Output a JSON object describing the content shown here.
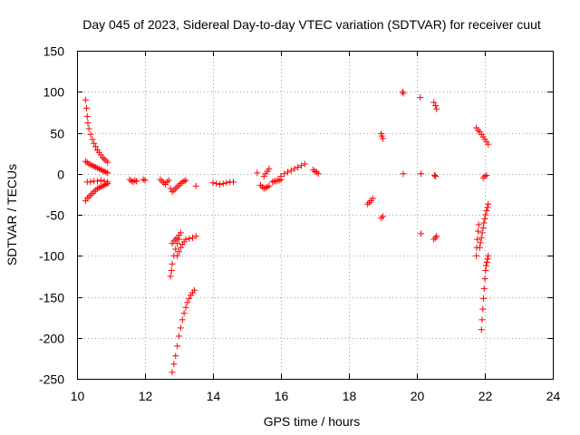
{
  "chart_data": {
    "type": "scatter",
    "title": "Day 045 of 2023, Sidereal Day-to-day VTEC variation (SDTVAR) for receiver cuut",
    "xlabel": "GPS time / hours",
    "ylabel": "SDTVAR / TECUs",
    "xlim": [
      10,
      24
    ],
    "ylim": [
      -250,
      150
    ],
    "xticks": [
      10,
      12,
      14,
      16,
      18,
      20,
      22,
      24
    ],
    "yticks": [
      150,
      100,
      50,
      0,
      -50,
      -100,
      -150,
      -200,
      -250
    ],
    "xtick_labels": [
      "10",
      "12",
      "14",
      "16",
      "18",
      "20",
      "22",
      "24"
    ],
    "ytick_labels": [
      "150",
      "100",
      "50",
      "0",
      "-50",
      "-100",
      "-150",
      "-200",
      "-250"
    ],
    "grid": true,
    "marker": "+",
    "color": "#ff0000",
    "segments": [
      {
        "x": [
          10.25,
          10.28,
          10.3,
          10.32,
          10.35,
          10.4,
          10.45,
          10.5,
          10.55,
          10.6,
          10.65,
          10.7,
          10.75,
          10.8,
          10.85,
          10.9
        ],
        "y": [
          90,
          80,
          70,
          62,
          55,
          48,
          42,
          37,
          33,
          29,
          26,
          23,
          20,
          18,
          16,
          14
        ]
      },
      {
        "x": [
          10.25,
          10.3,
          10.35,
          10.4,
          10.45,
          10.5,
          10.55,
          10.6,
          10.65,
          10.7,
          10.75,
          10.8,
          10.85,
          10.9
        ],
        "y": [
          15,
          14,
          12,
          11,
          10,
          9,
          8,
          7,
          6,
          5,
          4,
          3,
          2,
          1
        ]
      },
      {
        "x": [
          10.25,
          10.3,
          10.35,
          10.4,
          10.45,
          10.5,
          10.55,
          10.6,
          10.65,
          10.7,
          10.75,
          10.8,
          10.85,
          10.9
        ],
        "y": [
          -33,
          -30,
          -28,
          -26,
          -24,
          -22,
          -20,
          -18,
          -17,
          -16,
          -15,
          -14,
          -13,
          -12
        ]
      },
      {
        "x": [
          10.3,
          10.4,
          10.5,
          10.6,
          10.7,
          10.8,
          10.9
        ],
        "y": [
          -10,
          -10,
          -9,
          -9,
          -8,
          -9,
          -10
        ]
      },
      {
        "x": [
          11.55,
          11.6,
          11.65,
          11.7,
          11.75
        ],
        "y": [
          -7,
          -9,
          -10,
          -8,
          -9
        ]
      },
      {
        "x": [
          11.95,
          12.0
        ],
        "y": [
          -7,
          -8
        ]
      },
      {
        "x": [
          12.45,
          12.5,
          12.55,
          12.6,
          12.65,
          12.7
        ],
        "y": [
          -7,
          -9,
          -11,
          -13,
          -10,
          -8
        ]
      },
      {
        "x": [
          12.75,
          12.8,
          12.85,
          12.9,
          12.95,
          13.0,
          13.05,
          13.1,
          13.15,
          13.2
        ],
        "y": [
          -18,
          -22,
          -20,
          -18,
          -16,
          -14,
          -12,
          -10,
          -9,
          -8
        ]
      },
      {
        "x": [
          13.5
        ],
        "y": [
          -15
        ]
      },
      {
        "x": [
          12.75,
          12.78,
          12.8,
          12.85,
          12.9,
          12.95,
          13.0
        ],
        "y": [
          -125,
          -118,
          -110,
          -100,
          -92,
          -85,
          -80
        ]
      },
      {
        "x": [
          12.8,
          12.85,
          12.9,
          12.95,
          13.0,
          13.05
        ],
        "y": [
          -85,
          -82,
          -80,
          -78,
          -75,
          -72
        ]
      },
      {
        "x": [
          12.95,
          13.0,
          13.05,
          13.1,
          13.15,
          13.2,
          13.3,
          13.4,
          13.5
        ],
        "y": [
          -100,
          -95,
          -90,
          -86,
          -83,
          -80,
          -79,
          -78,
          -76
        ]
      },
      {
        "x": [
          12.8,
          12.85,
          12.9,
          12.95,
          13.0,
          13.05,
          13.1,
          13.15,
          13.2,
          13.25,
          13.3,
          13.35,
          13.4,
          13.45
        ],
        "y": [
          -242,
          -232,
          -222,
          -210,
          -198,
          -188,
          -178,
          -170,
          -163,
          -157,
          -152,
          -148,
          -145,
          -142
        ]
      },
      {
        "x": [
          14.0,
          14.1,
          14.2,
          14.3,
          14.4,
          14.5,
          14.6
        ],
        "y": [
          -11,
          -12,
          -13,
          -12,
          -11,
          -10,
          -10
        ]
      },
      {
        "x": [
          15.4,
          15.45,
          15.5,
          15.55,
          15.6,
          15.65
        ],
        "y": [
          -14,
          -16,
          -18,
          -17,
          -16,
          -15
        ]
      },
      {
        "x": [
          15.5,
          15.55,
          15.6,
          15.65
        ],
        "y": [
          -3,
          0,
          3,
          6
        ]
      },
      {
        "x": [
          15.75,
          15.8,
          15.85,
          15.9,
          15.95,
          16.0
        ],
        "y": [
          -10,
          -9,
          -9,
          -8,
          -8,
          -7
        ]
      },
      {
        "x": [
          16.0,
          16.1,
          16.2,
          16.3,
          16.4,
          16.5,
          16.6,
          16.7
        ],
        "y": [
          -3,
          0,
          2,
          4,
          6,
          8,
          10,
          12
        ]
      },
      {
        "x": [
          16.95,
          17.0,
          17.05,
          17.1
        ],
        "y": [
          5,
          3,
          2,
          0
        ]
      },
      {
        "x": [
          15.3
        ],
        "y": [
          1
        ]
      },
      {
        "x": [
          18.55,
          18.6,
          18.65,
          18.7
        ],
        "y": [
          -37,
          -35,
          -33,
          -30
        ]
      },
      {
        "x": [
          18.95,
          19.0
        ],
        "y": [
          -54,
          -52
        ]
      },
      {
        "x": [
          18.95,
          18.97,
          19.0
        ],
        "y": [
          49,
          46,
          43
        ]
      },
      {
        "x": [
          19.58,
          19.6
        ],
        "y": [
          100,
          98
        ]
      },
      {
        "x": [
          19.6
        ],
        "y": [
          0
        ]
      },
      {
        "x": [
          20.1
        ],
        "y": [
          93
        ]
      },
      {
        "x": [
          20.12
        ],
        "y": [
          0
        ]
      },
      {
        "x": [
          20.12
        ],
        "y": [
          -73
        ]
      },
      {
        "x": [
          20.5,
          20.55,
          20.58
        ],
        "y": [
          87,
          83,
          79
        ]
      },
      {
        "x": [
          20.52,
          20.55
        ],
        "y": [
          -2,
          -3
        ]
      },
      {
        "x": [
          20.5,
          20.55,
          20.58
        ],
        "y": [
          -80,
          -78,
          -76
        ]
      },
      {
        "x": [
          21.75,
          21.8,
          21.85,
          21.9,
          21.95,
          22.0,
          22.05,
          22.1
        ],
        "y": [
          56,
          53,
          51,
          48,
          45,
          42,
          39,
          36
        ]
      },
      {
        "x": [
          21.95,
          22.0,
          22.05
        ],
        "y": [
          -5,
          -3,
          -2
        ]
      },
      {
        "x": [
          21.75,
          21.76,
          21.78,
          21.8,
          21.82
        ],
        "y": [
          -100,
          -90,
          -80,
          -70,
          -62
        ]
      },
      {
        "x": [
          21.85,
          21.87,
          21.9,
          21.92,
          21.95,
          21.97,
          22.0,
          22.02,
          22.05,
          22.08,
          22.1
        ],
        "y": [
          -90,
          -84,
          -78,
          -72,
          -66,
          -60,
          -55,
          -50,
          -45,
          -41,
          -37
        ]
      },
      {
        "x": [
          21.9,
          21.92,
          21.94,
          21.96,
          21.98,
          22.0,
          22.02,
          22.04,
          22.06,
          22.08,
          22.1
        ],
        "y": [
          -190,
          -178,
          -165,
          -152,
          -140,
          -128,
          -118,
          -112,
          -108,
          -104,
          -100
        ]
      }
    ]
  }
}
